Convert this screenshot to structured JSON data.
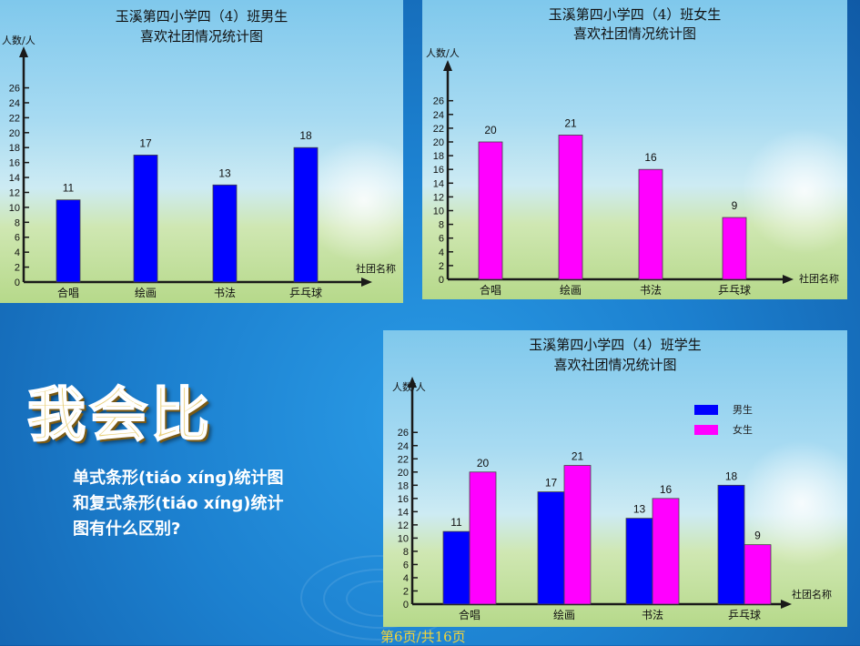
{
  "slide": {
    "heading": "我会比",
    "question_lines": [
      "单式条形(tiáo xíng)统计图",
      "和复式条形(tiáo xíng)统计",
      "图有什么区别?"
    ],
    "footer": "第6页/共16页"
  },
  "colors": {
    "boys": "#0000ff",
    "girls": "#ff00ff",
    "axis": "#1a1a1a"
  },
  "chart_data": [
    {
      "type": "bar",
      "title_lines": [
        "玉溪第四小学四（4）班男生",
        "喜欢社团情况统计图"
      ],
      "ylabel": "人数/人",
      "xlabel": "社团名称",
      "categories": [
        "合唱",
        "绘画",
        "书法",
        "乒乓球"
      ],
      "series": [
        {
          "values": [
            11,
            17,
            13,
            18
          ]
        }
      ],
      "y_ticks": [
        0,
        2,
        4,
        6,
        8,
        10,
        12,
        14,
        16,
        18,
        20,
        22,
        24,
        26
      ],
      "ylim": [
        0,
        26
      ]
    },
    {
      "type": "bar",
      "title_lines": [
        "玉溪第四小学四（4）班女生",
        "喜欢社团情况统计图"
      ],
      "ylabel": "人数/人",
      "xlabel": "社团名称",
      "categories": [
        "合唱",
        "绘画",
        "书法",
        "乒乓球"
      ],
      "series": [
        {
          "values": [
            20,
            21,
            16,
            9
          ]
        }
      ],
      "y_ticks": [
        0,
        2,
        4,
        6,
        8,
        10,
        12,
        14,
        16,
        18,
        20,
        22,
        24,
        26
      ],
      "ylim": [
        0,
        26
      ]
    },
    {
      "type": "bar",
      "title_lines": [
        "玉溪第四小学四（4）班学生",
        "喜欢社团情况统计图"
      ],
      "ylabel": "人数/人",
      "xlabel": "社团名称",
      "categories": [
        "合唱",
        "绘画",
        "书法",
        "乒乓球"
      ],
      "series": [
        {
          "name": "男生",
          "values": [
            11,
            17,
            13,
            18
          ]
        },
        {
          "name": "女生",
          "values": [
            20,
            21,
            16,
            9
          ]
        }
      ],
      "y_ticks": [
        0,
        2,
        4,
        6,
        8,
        10,
        12,
        14,
        16,
        18,
        20,
        22,
        24,
        26
      ],
      "ylim": [
        0,
        26
      ],
      "legend": "top-right"
    }
  ]
}
